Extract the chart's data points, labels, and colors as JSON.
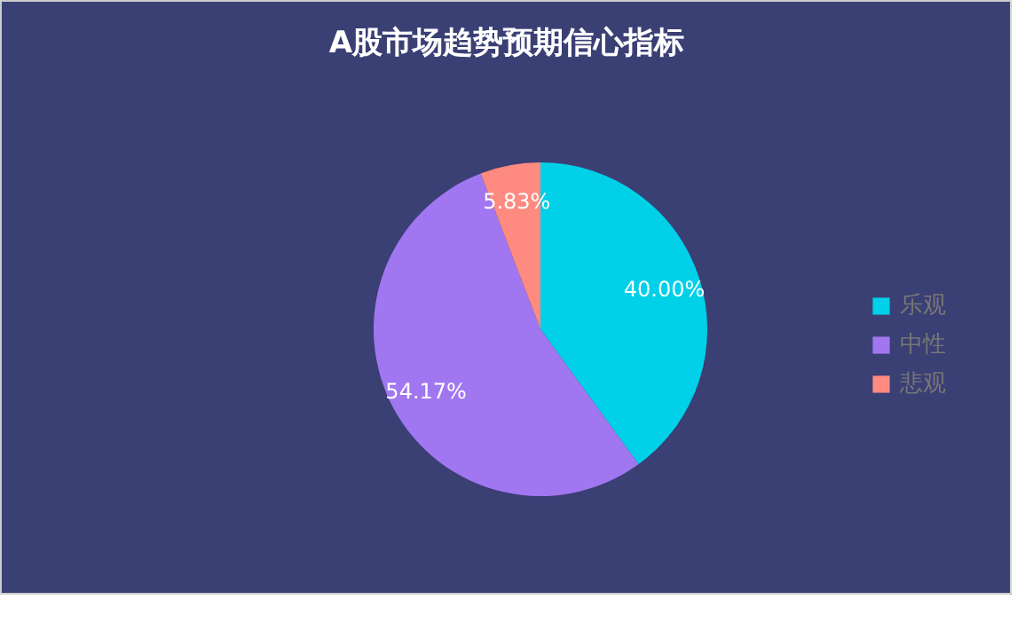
{
  "chart_data": {
    "type": "pie",
    "title": "A股市场趋势预期信心指标",
    "categories": [
      "乐观",
      "中性",
      "悲观"
    ],
    "values": [
      40.0,
      54.17,
      5.83
    ],
    "value_labels": [
      "40.00%",
      "54.17%",
      "5.83%"
    ],
    "colors": [
      "#00d0e8",
      "#a077f0",
      "#ff8a80"
    ],
    "legend": "right"
  }
}
